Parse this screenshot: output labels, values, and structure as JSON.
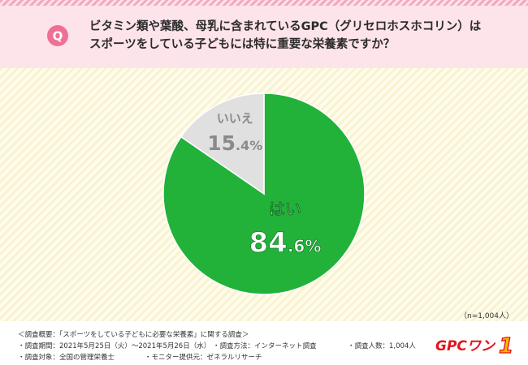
{
  "header": {
    "badge": "Q",
    "question_line1": "ビタミン類や葉酸、母乳に含まれているGPC（グリセロホスホコリン）は",
    "question_line2": "スポーツをしている子どもには特に重要な栄養素ですか？"
  },
  "chart_data": {
    "type": "pie",
    "slices": [
      {
        "label": "はい",
        "value": 84.6,
        "value_label": "84.6%",
        "color": "#22b23a"
      },
      {
        "label": "いいえ",
        "value": 15.4,
        "value_label": "15.4%",
        "color": "#e0e0e0"
      }
    ],
    "start": "12 o'clock",
    "direction": "clockwise"
  },
  "n_label": "（n=1,004人）",
  "footer": {
    "line1": "＜調査概要：「スポーツをしている子どもに必要な栄養素」に関する調査＞",
    "period": "・調査期間：2021年5月25日（火）〜2021年5月26日（水）",
    "method": "・調査方法：インターネット調査",
    "count": "・調査人数：1,004人",
    "target": "・調査対象：全国の管理栄養士",
    "provider": "・モニター提供元：ゼネラルリサーチ"
  },
  "logo": {
    "text": "GPCワン",
    "number": "1"
  }
}
